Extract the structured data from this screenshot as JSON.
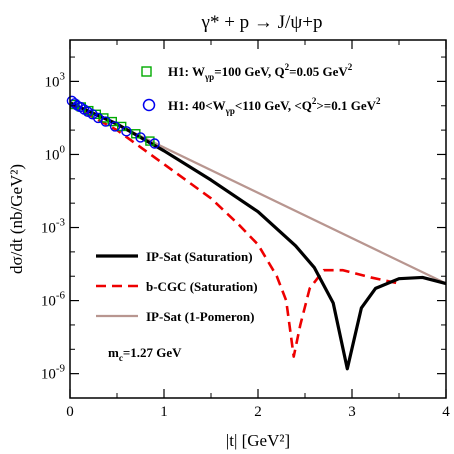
{
  "chart_data": {
    "type": "line",
    "title": "γ* + p → J/ψ+p",
    "xlabel": "|t| [GeV²]",
    "ylabel": "dσ/dt (nb/GeV²)",
    "xlim": [
      0,
      4
    ],
    "ylim_log10": [
      -10,
      4.7
    ],
    "yscale": "log",
    "grid": false,
    "legend_position": "bottom-left",
    "x_ticks": [
      "0",
      "1",
      "2",
      "3",
      "4"
    ],
    "y_ticks": [
      {
        "exp": 3,
        "label": "10³",
        "base": "10",
        "sup": "3"
      },
      {
        "exp": 0,
        "label": "10⁰",
        "base": "10",
        "sup": "0"
      },
      {
        "exp": -3,
        "label": "10⁻³",
        "base": "10",
        "sup": "-3"
      },
      {
        "exp": -6,
        "label": "10⁻⁶",
        "base": "10",
        "sup": "-6"
      },
      {
        "exp": -9,
        "label": "10⁻⁹",
        "base": "10",
        "sup": "-9"
      }
    ],
    "annotation": {
      "label": "mc=1.27 GeV",
      "main": "m",
      "sub": "c",
      "rest": "=1.27 GeV"
    },
    "series": [
      {
        "name": "IP-Sat (Saturation)",
        "color": "#000000",
        "style": "solid",
        "log10_points": [
          [
            0,
            2.12
          ],
          [
            0.5,
            1.25
          ],
          [
            1,
            0.15
          ],
          [
            1.5,
            -1.05
          ],
          [
            2,
            -2.35
          ],
          [
            2.4,
            -3.75
          ],
          [
            2.6,
            -4.65
          ],
          [
            2.8,
            -6.1
          ],
          [
            2.95,
            -8.8
          ],
          [
            3.1,
            -6.3
          ],
          [
            3.25,
            -5.5
          ],
          [
            3.5,
            -5.1
          ],
          [
            3.75,
            -5.05
          ],
          [
            4,
            -5.3
          ]
        ]
      },
      {
        "name": "b-CGC (Saturation)",
        "color": "#ee0000",
        "style": "dashed",
        "log10_points": [
          [
            0,
            2.05
          ],
          [
            0.5,
            1.0
          ],
          [
            1,
            -0.4
          ],
          [
            1.5,
            -1.8
          ],
          [
            1.8,
            -2.9
          ],
          [
            2,
            -3.7
          ],
          [
            2.2,
            -5.0
          ],
          [
            2.3,
            -6.0
          ],
          [
            2.38,
            -8.3
          ],
          [
            2.45,
            -7.0
          ],
          [
            2.55,
            -5.5
          ],
          [
            2.7,
            -4.75
          ],
          [
            2.9,
            -4.75
          ],
          [
            3.2,
            -5.05
          ],
          [
            3.5,
            -5.3
          ]
        ]
      },
      {
        "name": "IP-Sat (1-Pomeron)",
        "color": "#b89690",
        "style": "solid",
        "log10_points": [
          [
            0,
            2.15
          ],
          [
            4,
            -5.3
          ]
        ]
      }
    ],
    "data_sets": [
      {
        "name": "H1: Wγp=100 GeV, Q²=0.05 GeV²",
        "prefix": "H1: W",
        "sub1": "γp",
        "mid": "=100 GeV, Q",
        "sup1": "2",
        "mid2": "=0.05 GeV",
        "sup2": "2",
        "marker": "square",
        "color": "#00aa00",
        "log10_points": [
          [
            0.05,
            2.05
          ],
          [
            0.12,
            1.95
          ],
          [
            0.2,
            1.8
          ],
          [
            0.28,
            1.65
          ],
          [
            0.36,
            1.5
          ],
          [
            0.45,
            1.35
          ],
          [
            0.55,
            1.15
          ],
          [
            0.7,
            0.85
          ],
          [
            0.85,
            0.55
          ]
        ]
      },
      {
        "name": "H1: 40<Wγp<110 GeV, <Q²>=0.1 GeV²",
        "prefix": "H1: 40<W",
        "sub1": "γp",
        "mid": "<110 GeV, <Q",
        "sup1": "2",
        "mid2": ">=0.1 GeV",
        "sup2": "2",
        "marker": "circle",
        "color": "#0000ee",
        "log10_points": [
          [
            0.02,
            2.2
          ],
          [
            0.05,
            2.1
          ],
          [
            0.08,
            2.0
          ],
          [
            0.11,
            1.95
          ],
          [
            0.15,
            1.85
          ],
          [
            0.19,
            1.75
          ],
          [
            0.24,
            1.65
          ],
          [
            0.3,
            1.5
          ],
          [
            0.38,
            1.35
          ],
          [
            0.48,
            1.15
          ],
          [
            0.6,
            0.95
          ],
          [
            0.75,
            0.7
          ],
          [
            0.9,
            0.45
          ]
        ]
      }
    ]
  }
}
